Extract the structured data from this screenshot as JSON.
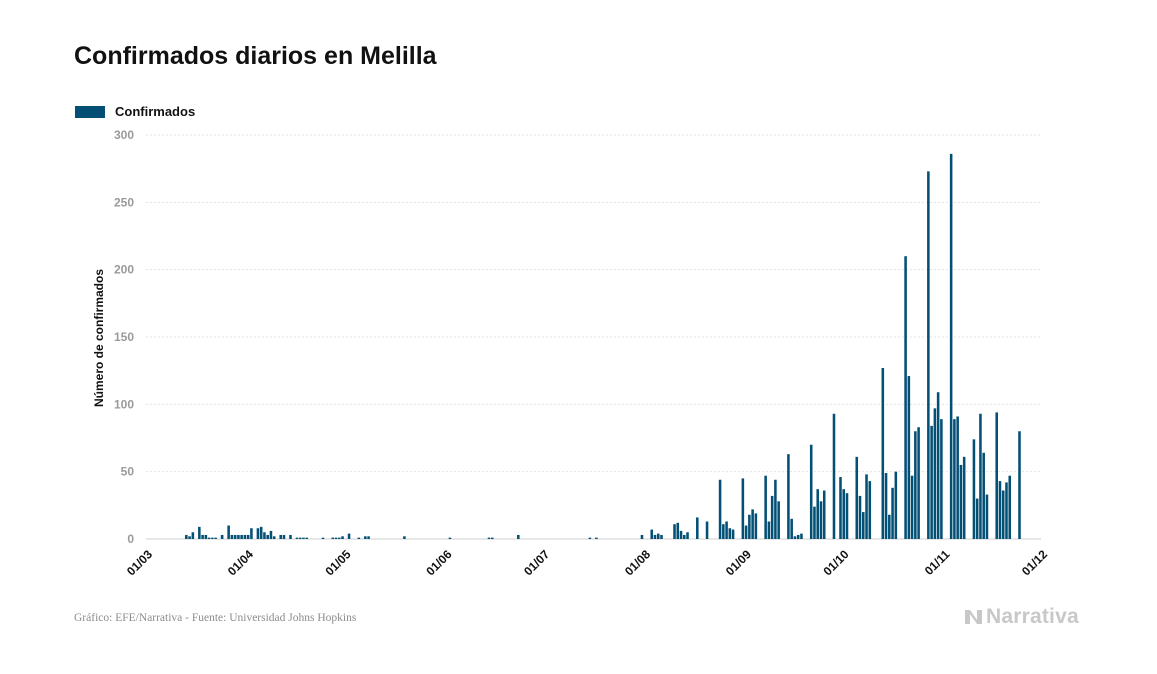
{
  "title": "Confirmados diarios en Melilla",
  "footer": "Gráfico: EFE/Narrativa - Fuente: Universidad Johns Hopkins",
  "brand": "Narrativa",
  "colors": {
    "bar": "#045075",
    "grid": "#e3e3e3",
    "tick": "#9a9a9a",
    "brand": "#c8c8c8"
  },
  "chart_data": {
    "type": "bar",
    "title": "Confirmados diarios en Melilla",
    "ylabel": "Número de confirmados",
    "xlabel": "",
    "ylim": [
      0,
      300
    ],
    "yticks": [
      0,
      50,
      100,
      150,
      200,
      250,
      300
    ],
    "xticks": [
      "01/03",
      "01/04",
      "01/05",
      "01/06",
      "01/07",
      "01/08",
      "01/09",
      "01/10",
      "01/11",
      "01/12"
    ],
    "xrange": [
      "2020-03-01",
      "2020-12-01"
    ],
    "grid": true,
    "legend_position": "top-left",
    "series": [
      {
        "name": "Confirmados",
        "points": [
          [
            "2020-03-13",
            3
          ],
          [
            "2020-03-14",
            2
          ],
          [
            "2020-03-15",
            5
          ],
          [
            "2020-03-17",
            9
          ],
          [
            "2020-03-18",
            3
          ],
          [
            "2020-03-19",
            3
          ],
          [
            "2020-03-20",
            1
          ],
          [
            "2020-03-21",
            1
          ],
          [
            "2020-03-22",
            1
          ],
          [
            "2020-03-24",
            3
          ],
          [
            "2020-03-26",
            10
          ],
          [
            "2020-03-27",
            3
          ],
          [
            "2020-03-28",
            3
          ],
          [
            "2020-03-29",
            3
          ],
          [
            "2020-03-30",
            3
          ],
          [
            "2020-03-31",
            3
          ],
          [
            "2020-04-01",
            3
          ],
          [
            "2020-04-02",
            8
          ],
          [
            "2020-04-04",
            8
          ],
          [
            "2020-04-05",
            9
          ],
          [
            "2020-04-06",
            5
          ],
          [
            "2020-04-07",
            3
          ],
          [
            "2020-04-08",
            6
          ],
          [
            "2020-04-09",
            2
          ],
          [
            "2020-04-11",
            3
          ],
          [
            "2020-04-12",
            3
          ],
          [
            "2020-04-14",
            3
          ],
          [
            "2020-04-16",
            1
          ],
          [
            "2020-04-17",
            1
          ],
          [
            "2020-04-18",
            1
          ],
          [
            "2020-04-19",
            1
          ],
          [
            "2020-04-24",
            1
          ],
          [
            "2020-04-27",
            1
          ],
          [
            "2020-04-28",
            1
          ],
          [
            "2020-04-29",
            1
          ],
          [
            "2020-04-30",
            2
          ],
          [
            "2020-05-02",
            4
          ],
          [
            "2020-05-05",
            1
          ],
          [
            "2020-05-07",
            2
          ],
          [
            "2020-05-08",
            2
          ],
          [
            "2020-05-19",
            2
          ],
          [
            "2020-06-02",
            1
          ],
          [
            "2020-06-14",
            1
          ],
          [
            "2020-06-15",
            1
          ],
          [
            "2020-06-23",
            3
          ],
          [
            "2020-07-15",
            1
          ],
          [
            "2020-07-17",
            1
          ],
          [
            "2020-07-31",
            3
          ],
          [
            "2020-08-03",
            7
          ],
          [
            "2020-08-04",
            3
          ],
          [
            "2020-08-05",
            4
          ],
          [
            "2020-08-06",
            3
          ],
          [
            "2020-08-10",
            11
          ],
          [
            "2020-08-11",
            12
          ],
          [
            "2020-08-12",
            6
          ],
          [
            "2020-08-13",
            3
          ],
          [
            "2020-08-14",
            5
          ],
          [
            "2020-08-17",
            16
          ],
          [
            "2020-08-20",
            13
          ],
          [
            "2020-08-24",
            44
          ],
          [
            "2020-08-25",
            11
          ],
          [
            "2020-08-26",
            13
          ],
          [
            "2020-08-27",
            8
          ],
          [
            "2020-08-28",
            7
          ],
          [
            "2020-08-31",
            45
          ],
          [
            "2020-09-01",
            10
          ],
          [
            "2020-09-02",
            18
          ],
          [
            "2020-09-03",
            22
          ],
          [
            "2020-09-04",
            19
          ],
          [
            "2020-09-07",
            47
          ],
          [
            "2020-09-08",
            13
          ],
          [
            "2020-09-09",
            32
          ],
          [
            "2020-09-10",
            44
          ],
          [
            "2020-09-11",
            28
          ],
          [
            "2020-09-14",
            63
          ],
          [
            "2020-09-15",
            15
          ],
          [
            "2020-09-16",
            2
          ],
          [
            "2020-09-17",
            3
          ],
          [
            "2020-09-18",
            4
          ],
          [
            "2020-09-21",
            70
          ],
          [
            "2020-09-22",
            24
          ],
          [
            "2020-09-23",
            37
          ],
          [
            "2020-09-24",
            28
          ],
          [
            "2020-09-25",
            36
          ],
          [
            "2020-09-28",
            93
          ],
          [
            "2020-09-30",
            46
          ],
          [
            "2020-10-01",
            37
          ],
          [
            "2020-10-02",
            34
          ],
          [
            "2020-10-05",
            61
          ],
          [
            "2020-10-06",
            32
          ],
          [
            "2020-10-07",
            20
          ],
          [
            "2020-10-08",
            48
          ],
          [
            "2020-10-09",
            43
          ],
          [
            "2020-10-13",
            127
          ],
          [
            "2020-10-14",
            49
          ],
          [
            "2020-10-15",
            18
          ],
          [
            "2020-10-16",
            38
          ],
          [
            "2020-10-17",
            50
          ],
          [
            "2020-10-20",
            210
          ],
          [
            "2020-10-21",
            121
          ],
          [
            "2020-10-22",
            47
          ],
          [
            "2020-10-23",
            80
          ],
          [
            "2020-10-24",
            83
          ],
          [
            "2020-10-27",
            273
          ],
          [
            "2020-10-28",
            84
          ],
          [
            "2020-10-29",
            97
          ],
          [
            "2020-10-30",
            109
          ],
          [
            "2020-10-31",
            89
          ],
          [
            "2020-11-03",
            286
          ],
          [
            "2020-11-04",
            89
          ],
          [
            "2020-11-05",
            91
          ],
          [
            "2020-11-06",
            55
          ],
          [
            "2020-11-07",
            61
          ],
          [
            "2020-11-10",
            74
          ],
          [
            "2020-11-11",
            30
          ],
          [
            "2020-11-12",
            93
          ],
          [
            "2020-11-13",
            64
          ],
          [
            "2020-11-14",
            33
          ],
          [
            "2020-11-17",
            94
          ],
          [
            "2020-11-18",
            43
          ],
          [
            "2020-11-19",
            36
          ],
          [
            "2020-11-20",
            42
          ],
          [
            "2020-11-21",
            47
          ],
          [
            "2020-11-24",
            80
          ]
        ]
      }
    ]
  }
}
